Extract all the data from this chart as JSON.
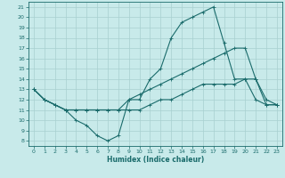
{
  "background_color": "#c8eaea",
  "grid_color": "#a8d0d0",
  "line_color": "#1a6b6b",
  "xlabel": "Humidex (Indice chaleur)",
  "xlim": [
    -0.5,
    23.5
  ],
  "ylim": [
    7.5,
    21.5
  ],
  "xticks": [
    0,
    1,
    2,
    3,
    4,
    5,
    6,
    7,
    8,
    9,
    10,
    11,
    12,
    13,
    14,
    15,
    16,
    17,
    18,
    19,
    20,
    21,
    22,
    23
  ],
  "yticks": [
    8,
    9,
    10,
    11,
    12,
    13,
    14,
    15,
    16,
    17,
    18,
    19,
    20,
    21
  ],
  "line1_x": [
    0,
    1,
    2,
    3,
    4,
    5,
    6,
    7,
    8,
    9,
    10,
    11,
    12,
    13,
    14,
    15,
    16,
    17,
    18,
    19,
    20,
    21,
    22,
    23
  ],
  "line1_y": [
    13,
    12,
    11.5,
    11,
    10,
    9.5,
    8.5,
    8,
    8.5,
    12,
    12,
    14,
    15,
    18,
    19.5,
    20,
    20.5,
    21,
    17.5,
    14,
    14,
    12,
    11.5,
    11.5
  ],
  "line2_x": [
    0,
    1,
    2,
    3,
    4,
    5,
    6,
    7,
    8,
    9,
    10,
    11,
    12,
    13,
    14,
    15,
    16,
    17,
    18,
    19,
    20,
    21,
    22,
    23
  ],
  "line2_y": [
    13,
    12,
    11.5,
    11,
    11,
    11,
    11,
    11,
    11,
    12,
    12.5,
    13,
    13.5,
    14,
    14.5,
    15,
    15.5,
    16,
    16.5,
    17,
    17,
    14,
    12,
    11.5
  ],
  "line3_x": [
    0,
    1,
    2,
    3,
    4,
    5,
    6,
    7,
    8,
    9,
    10,
    11,
    12,
    13,
    14,
    15,
    16,
    17,
    18,
    19,
    20,
    21,
    22,
    23
  ],
  "line3_y": [
    13,
    12,
    11.5,
    11,
    11,
    11,
    11,
    11,
    11,
    11,
    11,
    11.5,
    12,
    12,
    12.5,
    13,
    13.5,
    13.5,
    13.5,
    13.5,
    14,
    14,
    11.5,
    11.5
  ]
}
